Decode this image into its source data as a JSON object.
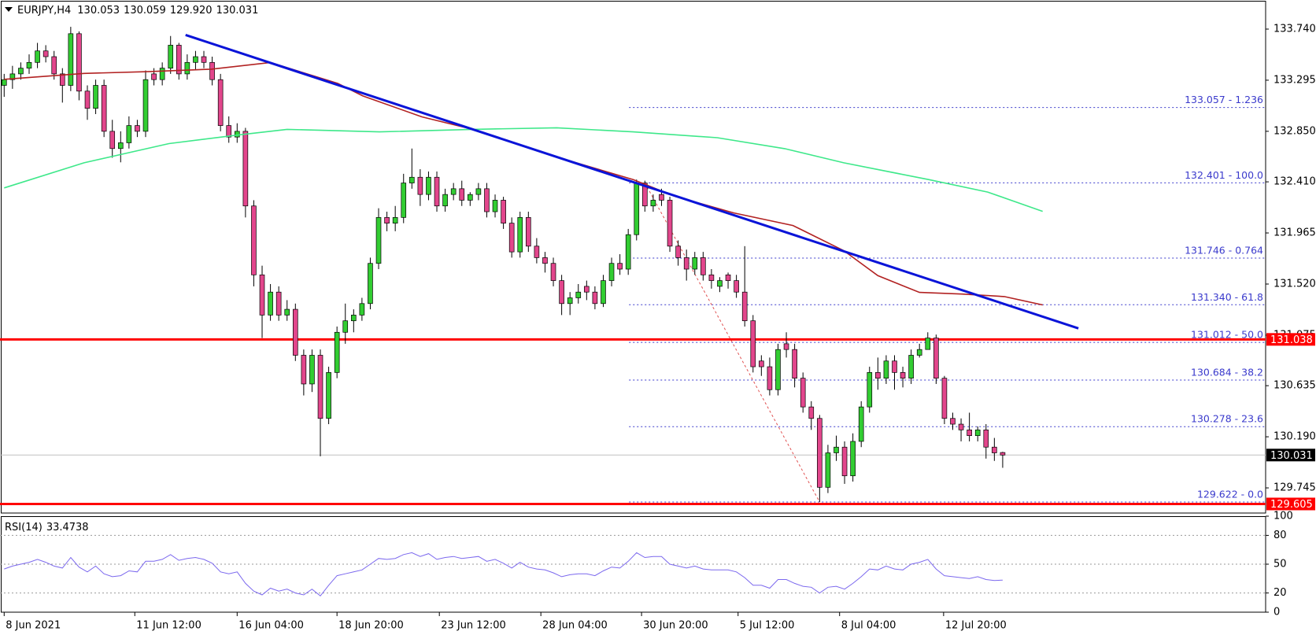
{
  "chart_data": {
    "type": "candlestick",
    "symbol": "EURJPY,H4",
    "quote_labels": [
      "130.053",
      "130.059",
      "129.920",
      "130.031"
    ],
    "up_color": "#32cd32",
    "down_color": "#e2468c",
    "open": [
      133.25,
      133.3,
      133.35,
      133.4,
      133.45,
      133.55,
      133.5,
      133.35,
      133.25,
      133.7,
      133.2,
      133.05,
      133.25,
      132.85,
      132.7,
      132.75,
      132.9,
      132.85,
      133.35,
      133.3,
      133.4,
      133.6,
      133.35,
      133.45,
      133.5,
      133.45,
      133.3,
      132.9,
      132.8,
      132.85,
      132.2,
      131.6,
      131.25,
      131.45,
      131.25,
      131.3,
      130.9,
      130.65,
      130.9,
      130.35,
      130.75,
      131.1,
      131.2,
      131.25,
      131.35,
      131.7,
      132.1,
      132.05,
      132.1,
      132.4,
      132.45,
      132.3,
      132.45,
      132.2,
      132.3,
      132.35,
      132.25,
      132.3,
      132.35,
      132.15,
      132.25,
      132.05,
      131.8,
      132.1,
      131.85,
      131.75,
      131.7,
      131.55,
      131.35,
      131.4,
      131.5,
      131.45,
      131.35,
      131.55,
      131.7,
      131.65,
      131.95,
      132.4,
      132.2,
      132.3,
      132.25,
      131.85,
      131.75,
      131.65,
      131.75,
      131.6,
      131.5,
      131.6,
      131.55,
      131.45,
      131.2,
      130.85,
      130.8,
      130.6,
      131.0,
      130.95,
      130.7,
      130.45,
      130.35,
      129.75,
      130.05,
      130.1,
      129.85,
      130.15,
      130.45,
      130.75,
      130.7,
      130.85,
      130.75,
      130.7,
      130.9,
      130.95,
      131.05,
      130.7,
      130.35,
      130.3,
      130.25,
      130.2,
      130.25,
      130.1,
      130.053
    ],
    "high": [
      133.35,
      133.42,
      133.45,
      133.52,
      133.62,
      133.6,
      133.55,
      133.4,
      133.76,
      133.72,
      133.25,
      133.3,
      133.3,
      132.95,
      132.85,
      132.98,
      132.95,
      133.38,
      133.4,
      133.45,
      133.68,
      133.62,
      133.52,
      133.55,
      133.55,
      133.5,
      133.35,
      132.98,
      132.92,
      132.88,
      132.25,
      131.68,
      131.52,
      131.5,
      131.38,
      131.35,
      130.95,
      130.95,
      130.95,
      130.8,
      131.15,
      131.35,
      131.3,
      131.4,
      131.75,
      132.18,
      132.15,
      132.2,
      132.48,
      132.7,
      132.52,
      132.5,
      132.5,
      132.35,
      132.4,
      132.42,
      132.32,
      132.4,
      132.4,
      132.3,
      132.28,
      132.1,
      132.15,
      132.15,
      131.92,
      131.8,
      131.75,
      131.6,
      131.45,
      131.52,
      131.55,
      131.5,
      131.6,
      131.75,
      131.78,
      132.0,
      132.43,
      132.42,
      132.3,
      132.35,
      132.28,
      131.9,
      131.82,
      131.8,
      131.8,
      131.65,
      131.58,
      131.62,
      131.6,
      131.85,
      131.25,
      130.9,
      130.88,
      131.0,
      131.1,
      131.0,
      130.75,
      130.5,
      130.38,
      130.12,
      130.2,
      130.15,
      130.22,
      130.5,
      130.8,
      130.88,
      130.9,
      130.9,
      130.8,
      130.95,
      131.0,
      131.1,
      131.08,
      130.72,
      130.4,
      130.35,
      130.4,
      130.28,
      130.3,
      130.18,
      130.059
    ],
    "low": [
      133.15,
      133.22,
      133.3,
      133.35,
      133.4,
      133.45,
      133.3,
      133.1,
      133.2,
      133.12,
      132.95,
      133.0,
      132.8,
      132.62,
      132.58,
      132.7,
      132.8,
      132.8,
      133.25,
      133.25,
      133.35,
      133.3,
      133.3,
      133.38,
      133.4,
      133.25,
      132.85,
      132.75,
      132.75,
      132.1,
      131.5,
      131.05,
      131.2,
      131.2,
      131.2,
      130.85,
      130.55,
      130.58,
      130.02,
      130.3,
      130.7,
      131.0,
      131.1,
      131.2,
      131.3,
      131.65,
      131.98,
      131.98,
      132.05,
      132.35,
      132.2,
      132.25,
      132.15,
      132.15,
      132.25,
      132.2,
      132.2,
      132.25,
      132.1,
      132.1,
      132.0,
      131.75,
      131.75,
      131.8,
      131.7,
      131.62,
      131.5,
      131.25,
      131.25,
      131.35,
      131.38,
      131.3,
      131.32,
      131.5,
      131.6,
      131.6,
      131.9,
      132.15,
      132.15,
      132.2,
      131.8,
      131.68,
      131.55,
      131.6,
      131.55,
      131.48,
      131.45,
      131.48,
      131.4,
      131.15,
      130.75,
      130.72,
      130.55,
      130.55,
      130.88,
      130.62,
      130.4,
      130.25,
      129.622,
      129.7,
      129.98,
      129.78,
      129.8,
      130.1,
      130.4,
      130.6,
      130.65,
      130.6,
      130.62,
      130.65,
      130.88,
      130.95,
      130.65,
      130.3,
      130.25,
      130.15,
      130.15,
      130.15,
      130.0,
      129.98,
      129.92
    ],
    "close": [
      133.3,
      133.35,
      133.4,
      133.45,
      133.55,
      133.5,
      133.35,
      133.25,
      133.7,
      133.2,
      133.05,
      133.25,
      132.85,
      132.7,
      132.75,
      132.9,
      132.85,
      133.3,
      133.3,
      133.4,
      133.6,
      133.35,
      133.45,
      133.5,
      133.45,
      133.3,
      132.9,
      132.8,
      132.85,
      132.2,
      131.6,
      131.25,
      131.45,
      131.25,
      131.3,
      130.9,
      130.65,
      130.9,
      130.35,
      130.75,
      131.1,
      131.2,
      131.25,
      131.35,
      131.7,
      132.1,
      132.05,
      132.1,
      132.4,
      132.45,
      132.3,
      132.45,
      132.2,
      132.3,
      132.35,
      132.25,
      132.3,
      132.35,
      132.15,
      132.25,
      132.05,
      131.8,
      132.1,
      131.85,
      131.75,
      131.7,
      131.55,
      131.35,
      131.4,
      131.45,
      131.45,
      131.35,
      131.55,
      131.7,
      131.65,
      131.95,
      132.4,
      132.2,
      132.25,
      132.25,
      131.85,
      131.75,
      131.65,
      131.75,
      131.6,
      131.55,
      131.55,
      131.55,
      131.45,
      131.2,
      130.8,
      130.8,
      130.6,
      130.95,
      130.95,
      130.7,
      130.45,
      130.35,
      129.75,
      130.05,
      130.1,
      129.85,
      130.15,
      130.45,
      130.75,
      130.7,
      130.85,
      130.75,
      130.7,
      130.9,
      130.95,
      131.05,
      130.7,
      130.35,
      130.3,
      130.25,
      130.2,
      130.25,
      130.1,
      130.05,
      130.031
    ],
    "xlim": [
      -0.5,
      151.6
    ],
    "ylim": [
      129.526,
      133.966
    ],
    "yticks": [
      {
        "value": 133.74,
        "label": "133.740"
      },
      {
        "value": 133.295,
        "label": "133.295"
      },
      {
        "value": 132.85,
        "label": "132.850"
      },
      {
        "value": 132.41,
        "label": "132.410"
      },
      {
        "value": 131.965,
        "label": "131.965"
      },
      {
        "value": 131.52,
        "label": "131.520"
      },
      {
        "value": 131.075,
        "label": "131.075"
      },
      {
        "value": 130.635,
        "label": "130.635"
      },
      {
        "value": 130.19,
        "label": "130.190"
      },
      {
        "value": 129.745,
        "label": "129.745"
      }
    ],
    "xticks": [
      {
        "value": 0,
        "label": "8 Jun 2021"
      },
      {
        "value": 15.7,
        "label": "11 Jun 12:00"
      },
      {
        "value": 28,
        "label": "16 Jun 04:00"
      },
      {
        "value": 40,
        "label": "18 Jun 20:00"
      },
      {
        "value": 52.3,
        "label": "23 Jun 12:00"
      },
      {
        "value": 64.5,
        "label": "28 Jun 04:00"
      },
      {
        "value": 76.6,
        "label": "30 Jun 20:00"
      },
      {
        "value": 88.2,
        "label": "5 Jul 12:00"
      },
      {
        "value": 100.4,
        "label": "8 Jul 04:00"
      },
      {
        "value": 112.9,
        "label": "12 Jul 20:00"
      }
    ],
    "moving_averages": [
      {
        "color": "#3ee88a",
        "x": [
          0,
          9.6,
          19.8,
          27.9,
          34.0,
          45.1,
          56.3,
          66.4,
          75.6,
          85.7,
          93.8,
          100.9,
          111.1,
          118.2,
          124.8
        ],
        "values": [
          132.357,
          132.576,
          132.743,
          132.816,
          132.867,
          132.845,
          132.867,
          132.881,
          132.845,
          132.794,
          132.699,
          132.576,
          132.43,
          132.321,
          132.153
        ]
      },
      {
        "color": "#b22222",
        "x": [
          0,
          9.6,
          17.2,
          24.9,
          32.0,
          40.1,
          43.1,
          50.2,
          56.3,
          65.4,
          75.6,
          80.6,
          87.7,
          94.8,
          100.9,
          105.0,
          110.0,
          115.1,
          120.2,
          124.8
        ],
        "values": [
          133.303,
          133.354,
          133.369,
          133.391,
          133.449,
          133.267,
          133.158,
          132.976,
          132.867,
          132.648,
          132.43,
          132.284,
          132.139,
          132.03,
          131.811,
          131.593,
          131.447,
          131.433,
          131.411,
          131.338
        ]
      }
    ],
    "trendline": {
      "color": "#0a14d8",
      "x": [
        21.8,
        129.1
      ],
      "y": [
        133.689,
        131.134
      ]
    },
    "fibonacci": {
      "color": "#3a3acc",
      "line_color": "#e05050",
      "x_start": 75.1,
      "anchor_x": [
        77,
        98
      ],
      "levels": [
        {
          "value": 133.057,
          "label": "133.057 - 1.236"
        },
        {
          "value": 132.401,
          "label": "132.401 - 100.0"
        },
        {
          "value": 131.746,
          "label": "131.746 - 0.764"
        },
        {
          "value": 131.34,
          "label": "131.340 - 61.8"
        },
        {
          "value": 131.012,
          "label": "131.012 - 50.0"
        },
        {
          "value": 130.684,
          "label": "130.684 - 38.2"
        },
        {
          "value": 130.278,
          "label": "130.278 - 23.6"
        },
        {
          "value": 129.622,
          "label": "129.622 - 0.0"
        }
      ]
    },
    "hlines": [
      {
        "value": 131.038,
        "color": "#ff0000"
      },
      {
        "value": 129.605,
        "color": "#ff0000"
      }
    ],
    "rsi": {
      "label": "RSI(14)",
      "color": "#7b68ee",
      "ylim": [
        0,
        100
      ],
      "yticks": [
        100,
        80,
        50,
        20,
        0
      ],
      "grid": true,
      "values": [
        45,
        48,
        50,
        52,
        55,
        52,
        48,
        46,
        57,
        47,
        42,
        48,
        40,
        37,
        38,
        43,
        42,
        53,
        53,
        55,
        60,
        54,
        56,
        57,
        55,
        51,
        42,
        40,
        42,
        30,
        22,
        18,
        25,
        22,
        24,
        20,
        18,
        24,
        17,
        28,
        38,
        40,
        42,
        44,
        50,
        56,
        55,
        56,
        60,
        62,
        58,
        61,
        55,
        57,
        58,
        56,
        57,
        58,
        53,
        55,
        51,
        46,
        52,
        47,
        45,
        44,
        41,
        37,
        39,
        40,
        40,
        38,
        43,
        47,
        46,
        53,
        62,
        57,
        58,
        58,
        50,
        48,
        46,
        48,
        45,
        44,
        44,
        44,
        42,
        36,
        28,
        28,
        25,
        34,
        34,
        30,
        27,
        26,
        20,
        26,
        27,
        24,
        30,
        37,
        45,
        44,
        48,
        45,
        44,
        50,
        52,
        55,
        45,
        38,
        37,
        36,
        35,
        37,
        34,
        33,
        33.4738
      ]
    }
  }
}
